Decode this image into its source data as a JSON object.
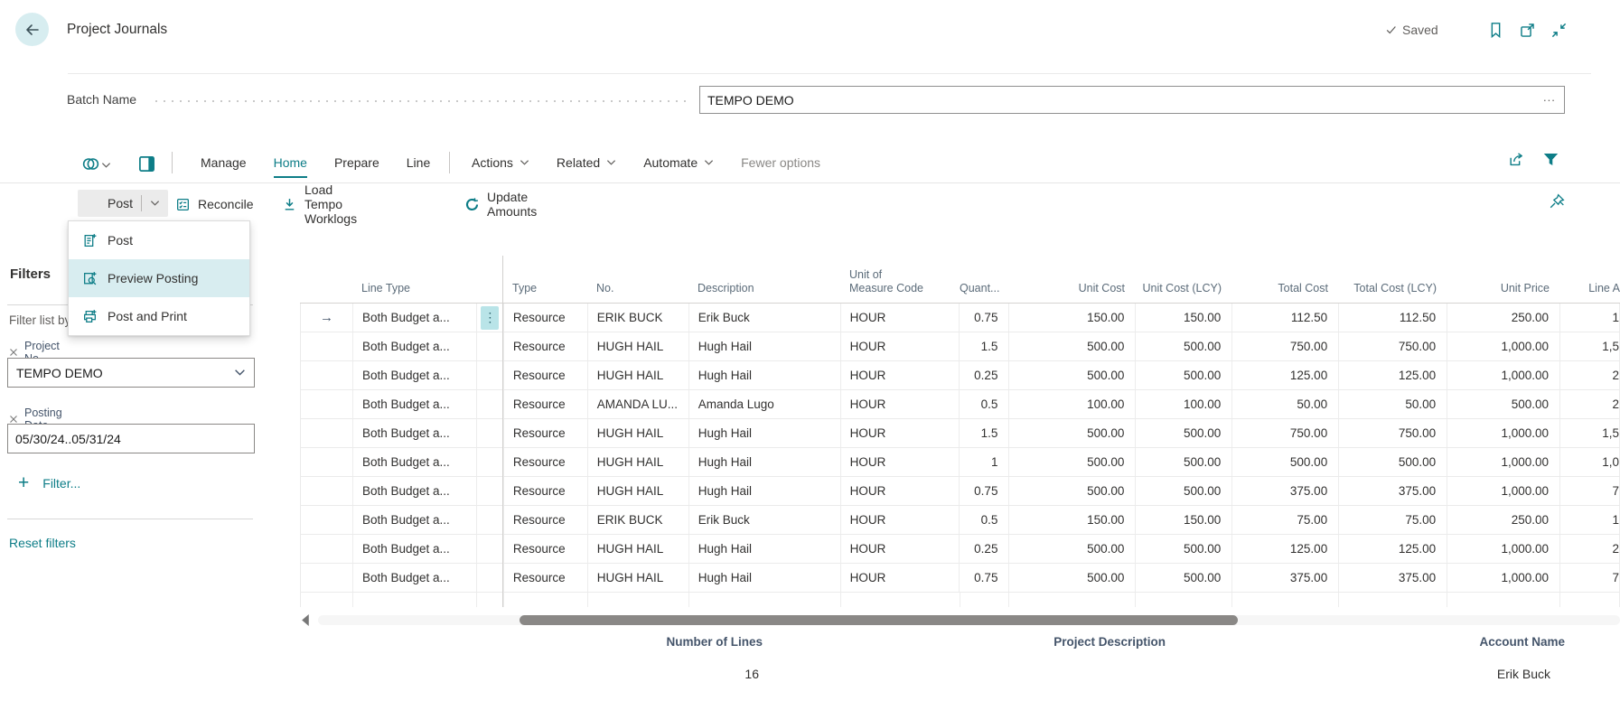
{
  "colors": {
    "accent": "#0d7d87",
    "menu_highlight": "#d8edf0",
    "row_dots_bg": "#b9e4e8",
    "saved_text": "#605e5c"
  },
  "header": {
    "title": "Project Journals",
    "saved_label": "Saved"
  },
  "batch": {
    "label": "Batch Name",
    "value": "TEMPO DEMO",
    "ellipsis": "..."
  },
  "ribbon": {
    "tabs": [
      {
        "label": "Manage",
        "active": false
      },
      {
        "label": "Home",
        "active": true
      },
      {
        "label": "Prepare",
        "active": false
      },
      {
        "label": "Line",
        "active": false
      }
    ],
    "menus": [
      {
        "label": "Actions"
      },
      {
        "label": "Related"
      },
      {
        "label": "Automate"
      }
    ],
    "fewer_options_label": "Fewer options"
  },
  "toolbar": {
    "post_label": "Post",
    "actions": [
      {
        "label": "Reconcile",
        "icon": "reconcile-icon"
      },
      {
        "label": "Load Tempo Worklogs",
        "icon": "download-icon"
      },
      {
        "label": "Update Amounts",
        "icon": "refresh-icon"
      }
    ]
  },
  "post_menu": {
    "items": [
      {
        "label": "Post",
        "icon": "post-icon",
        "highlighted": false
      },
      {
        "label": "Preview Posting",
        "icon": "preview-posting-icon",
        "highlighted": true
      },
      {
        "label": "Post and Print",
        "icon": "print-icon",
        "highlighted": false
      }
    ]
  },
  "filters": {
    "title": "Filters",
    "list_label": "Filter list by:",
    "fields": [
      {
        "label": "Project No.",
        "value": "TEMPO DEMO",
        "control": "select"
      },
      {
        "label": "Posting Date",
        "value": "05/30/24..05/31/24",
        "control": "input"
      }
    ],
    "add_label": "Filter...",
    "reset_label": "Reset filters"
  },
  "grid": {
    "columns": {
      "line_type": "Line Type",
      "type": "Type",
      "no": "No.",
      "description": "Description",
      "uom": "Unit of\nMeasure Code",
      "quantity": "Quant...",
      "unit_cost": "Unit Cost",
      "unit_cost_lcy": "Unit Cost (LCY)",
      "total_cost": "Total Cost",
      "total_cost_lcy": "Total Cost (LCY)",
      "unit_price": "Unit Price",
      "line_amount": "Line A"
    },
    "rows": [
      {
        "current": true,
        "line_type": "Both Budget a...",
        "type": "Resource",
        "no": "ERIK BUCK",
        "description": "Erik Buck",
        "uom": "HOUR",
        "quantity": "0.75",
        "unit_cost": "150.00",
        "unit_cost_lcy": "150.00",
        "total_cost": "112.50",
        "total_cost_lcy": "112.50",
        "unit_price": "250.00",
        "line_amount": "1"
      },
      {
        "current": false,
        "line_type": "Both Budget a...",
        "type": "Resource",
        "no": "HUGH HAIL",
        "description": "Hugh Hail",
        "uom": "HOUR",
        "quantity": "1.5",
        "unit_cost": "500.00",
        "unit_cost_lcy": "500.00",
        "total_cost": "750.00",
        "total_cost_lcy": "750.00",
        "unit_price": "1,000.00",
        "line_amount": "1,5"
      },
      {
        "current": false,
        "line_type": "Both Budget a...",
        "type": "Resource",
        "no": "HUGH HAIL",
        "description": "Hugh Hail",
        "uom": "HOUR",
        "quantity": "0.25",
        "unit_cost": "500.00",
        "unit_cost_lcy": "500.00",
        "total_cost": "125.00",
        "total_cost_lcy": "125.00",
        "unit_price": "1,000.00",
        "line_amount": "2"
      },
      {
        "current": false,
        "line_type": "Both Budget a...",
        "type": "Resource",
        "no": "AMANDA LU...",
        "description": "Amanda Lugo",
        "uom": "HOUR",
        "quantity": "0.5",
        "unit_cost": "100.00",
        "unit_cost_lcy": "100.00",
        "total_cost": "50.00",
        "total_cost_lcy": "50.00",
        "unit_price": "500.00",
        "line_amount": "2"
      },
      {
        "current": false,
        "line_type": "Both Budget a...",
        "type": "Resource",
        "no": "HUGH HAIL",
        "description": "Hugh Hail",
        "uom": "HOUR",
        "quantity": "1.5",
        "unit_cost": "500.00",
        "unit_cost_lcy": "500.00",
        "total_cost": "750.00",
        "total_cost_lcy": "750.00",
        "unit_price": "1,000.00",
        "line_amount": "1,5"
      },
      {
        "current": false,
        "line_type": "Both Budget a...",
        "type": "Resource",
        "no": "HUGH HAIL",
        "description": "Hugh Hail",
        "uom": "HOUR",
        "quantity": "1",
        "unit_cost": "500.00",
        "unit_cost_lcy": "500.00",
        "total_cost": "500.00",
        "total_cost_lcy": "500.00",
        "unit_price": "1,000.00",
        "line_amount": "1,0"
      },
      {
        "current": false,
        "line_type": "Both Budget a...",
        "type": "Resource",
        "no": "HUGH HAIL",
        "description": "Hugh Hail",
        "uom": "HOUR",
        "quantity": "0.75",
        "unit_cost": "500.00",
        "unit_cost_lcy": "500.00",
        "total_cost": "375.00",
        "total_cost_lcy": "375.00",
        "unit_price": "1,000.00",
        "line_amount": "7"
      },
      {
        "current": false,
        "line_type": "Both Budget a...",
        "type": "Resource",
        "no": "ERIK BUCK",
        "description": "Erik Buck",
        "uom": "HOUR",
        "quantity": "0.5",
        "unit_cost": "150.00",
        "unit_cost_lcy": "150.00",
        "total_cost": "75.00",
        "total_cost_lcy": "75.00",
        "unit_price": "250.00",
        "line_amount": "1"
      },
      {
        "current": false,
        "line_type": "Both Budget a...",
        "type": "Resource",
        "no": "HUGH HAIL",
        "description": "Hugh Hail",
        "uom": "HOUR",
        "quantity": "0.25",
        "unit_cost": "500.00",
        "unit_cost_lcy": "500.00",
        "total_cost": "125.00",
        "total_cost_lcy": "125.00",
        "unit_price": "1,000.00",
        "line_amount": "2"
      },
      {
        "current": false,
        "line_type": "Both Budget a...",
        "type": "Resource",
        "no": "HUGH HAIL",
        "description": "Hugh Hail",
        "uom": "HOUR",
        "quantity": "0.75",
        "unit_cost": "500.00",
        "unit_cost_lcy": "500.00",
        "total_cost": "375.00",
        "total_cost_lcy": "375.00",
        "unit_price": "1,000.00",
        "line_amount": "7"
      }
    ]
  },
  "footer": {
    "number_of_lines_label": "Number of Lines",
    "number_of_lines_value": "16",
    "project_description_label": "Project Description",
    "account_name_label": "Account Name",
    "account_name_value": "Erik Buck"
  }
}
